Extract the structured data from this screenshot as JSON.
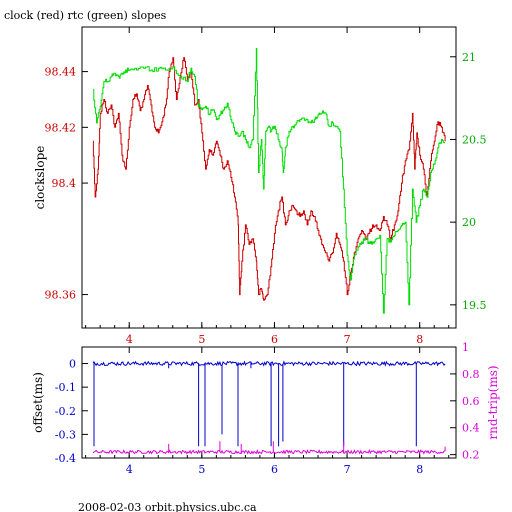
{
  "title": "clock (red) rtc (green) slopes",
  "footer": "2008-02-03 orbit.physics.ubc.ca",
  "colors": {
    "clock": "#cc0000",
    "rtc": "#00dd00",
    "offset": "#0000cc",
    "rndtrip": "#dd00dd",
    "frame": "#000000"
  },
  "chart_data": [
    {
      "type": "line",
      "title": "clock (red) rtc (green) slopes",
      "ylabel": "clockslope",
      "xlabel": "",
      "xlim": [
        3.35,
        8.5
      ],
      "ylim": [
        98.348,
        98.456
      ],
      "y2lim": [
        19.36,
        21.18
      ],
      "x_ticks": [
        4,
        5,
        6,
        7,
        8
      ],
      "y_ticks": [
        98.36,
        98.4,
        98.42,
        98.44
      ],
      "y_tick_labels": [
        "98.36",
        "98.4",
        "98.42",
        "98.44"
      ],
      "y2_ticks": [
        19.5,
        20,
        20.5,
        21
      ],
      "y2_tick_labels": [
        "19.5",
        "20",
        "20.5",
        "21"
      ],
      "grid": false,
      "series": [
        {
          "name": "clock",
          "axis": "left",
          "points": [
            [
              3.5,
              98.415
            ],
            [
              3.53,
              98.395
            ],
            [
              3.57,
              98.405
            ],
            [
              3.6,
              98.425
            ],
            [
              3.65,
              98.43
            ],
            [
              3.7,
              98.425
            ],
            [
              3.75,
              98.428
            ],
            [
              3.8,
              98.42
            ],
            [
              3.85,
              98.425
            ],
            [
              3.9,
              98.41
            ],
            [
              3.95,
              98.405
            ],
            [
              4.0,
              98.42
            ],
            [
              4.05,
              98.43
            ],
            [
              4.1,
              98.432
            ],
            [
              4.15,
              98.426
            ],
            [
              4.2,
              98.43
            ],
            [
              4.25,
              98.435
            ],
            [
              4.3,
              98.428
            ],
            [
              4.35,
              98.42
            ],
            [
              4.4,
              98.418
            ],
            [
              4.45,
              98.422
            ],
            [
              4.5,
              98.428
            ],
            [
              4.55,
              98.44
            ],
            [
              4.6,
              98.445
            ],
            [
              4.65,
              98.43
            ],
            [
              4.7,
              98.438
            ],
            [
              4.75,
              98.445
            ],
            [
              4.8,
              98.437
            ],
            [
              4.85,
              98.44
            ],
            [
              4.9,
              98.428
            ],
            [
              4.95,
              98.43
            ],
            [
              5.0,
              98.418
            ],
            [
              5.05,
              98.405
            ],
            [
              5.1,
              98.412
            ],
            [
              5.15,
              98.41
            ],
            [
              5.2,
              98.415
            ],
            [
              5.25,
              98.41
            ],
            [
              5.3,
              98.405
            ],
            [
              5.35,
              98.408
            ],
            [
              5.4,
              98.402
            ],
            [
              5.45,
              98.395
            ],
            [
              5.5,
              98.385
            ],
            [
              5.52,
              98.36
            ],
            [
              5.55,
              98.372
            ],
            [
              5.6,
              98.385
            ],
            [
              5.65,
              98.378
            ],
            [
              5.7,
              98.38
            ],
            [
              5.75,
              98.372
            ],
            [
              5.78,
              98.36
            ],
            [
              5.82,
              98.362
            ],
            [
              5.85,
              98.358
            ],
            [
              5.9,
              98.36
            ],
            [
              5.95,
              98.37
            ],
            [
              6.0,
              98.382
            ],
            [
              6.05,
              98.39
            ],
            [
              6.1,
              98.395
            ],
            [
              6.15,
              98.385
            ],
            [
              6.2,
              98.39
            ],
            [
              6.25,
              98.392
            ],
            [
              6.3,
              98.39
            ],
            [
              6.35,
              98.388
            ],
            [
              6.4,
              98.39
            ],
            [
              6.45,
              98.385
            ],
            [
              6.5,
              98.39
            ],
            [
              6.55,
              98.388
            ],
            [
              6.6,
              98.383
            ],
            [
              6.65,
              98.378
            ],
            [
              6.7,
              98.375
            ],
            [
              6.75,
              98.372
            ],
            [
              6.8,
              98.375
            ],
            [
              6.85,
              98.382
            ],
            [
              6.9,
              98.378
            ],
            [
              6.95,
              98.372
            ],
            [
              7.0,
              98.36
            ],
            [
              7.05,
              98.368
            ],
            [
              7.1,
              98.375
            ],
            [
              7.15,
              98.38
            ],
            [
              7.2,
              98.383
            ],
            [
              7.25,
              98.38
            ],
            [
              7.3,
              98.382
            ],
            [
              7.35,
              98.385
            ],
            [
              7.4,
              98.385
            ],
            [
              7.45,
              98.383
            ],
            [
              7.5,
              98.388
            ],
            [
              7.55,
              98.385
            ],
            [
              7.6,
              98.38
            ],
            [
              7.65,
              98.385
            ],
            [
              7.7,
              98.39
            ],
            [
              7.75,
              98.4
            ],
            [
              7.8,
              98.408
            ],
            [
              7.85,
              98.412
            ],
            [
              7.9,
              98.425
            ],
            [
              7.93,
              98.405
            ],
            [
              7.96,
              98.418
            ],
            [
              8.0,
              98.41
            ],
            [
              8.05,
              98.405
            ],
            [
              8.1,
              98.395
            ],
            [
              8.15,
              98.408
            ],
            [
              8.2,
              98.415
            ],
            [
              8.25,
              98.422
            ],
            [
              8.3,
              98.42
            ],
            [
              8.35,
              98.415
            ]
          ]
        },
        {
          "name": "rtc",
          "axis": "right",
          "points": [
            [
              3.5,
              20.8
            ],
            [
              3.55,
              20.6
            ],
            [
              3.6,
              20.7
            ],
            [
              3.65,
              20.85
            ],
            [
              3.7,
              20.85
            ],
            [
              3.75,
              20.88
            ],
            [
              3.8,
              20.9
            ],
            [
              3.85,
              20.88
            ],
            [
              3.9,
              20.9
            ],
            [
              3.95,
              20.92
            ],
            [
              4.0,
              20.92
            ],
            [
              4.1,
              20.92
            ],
            [
              4.2,
              20.93
            ],
            [
              4.3,
              20.92
            ],
            [
              4.4,
              20.93
            ],
            [
              4.5,
              20.92
            ],
            [
              4.6,
              20.94
            ],
            [
              4.7,
              20.88
            ],
            [
              4.8,
              20.85
            ],
            [
              4.85,
              20.93
            ],
            [
              4.9,
              20.88
            ],
            [
              4.95,
              20.7
            ],
            [
              5.0,
              20.68
            ],
            [
              5.05,
              20.7
            ],
            [
              5.1,
              20.65
            ],
            [
              5.15,
              20.68
            ],
            [
              5.2,
              20.62
            ],
            [
              5.25,
              20.65
            ],
            [
              5.3,
              20.68
            ],
            [
              5.35,
              20.72
            ],
            [
              5.4,
              20.62
            ],
            [
              5.45,
              20.55
            ],
            [
              5.5,
              20.52
            ],
            [
              5.55,
              20.55
            ],
            [
              5.6,
              20.5
            ],
            [
              5.65,
              20.45
            ],
            [
              5.7,
              20.5
            ],
            [
              5.75,
              21.05
            ],
            [
              5.78,
              20.3
            ],
            [
              5.82,
              20.5
            ],
            [
              5.85,
              20.2
            ],
            [
              5.88,
              20.55
            ],
            [
              5.92,
              20.58
            ],
            [
              5.95,
              20.55
            ],
            [
              6.0,
              20.58
            ],
            [
              6.05,
              20.5
            ],
            [
              6.1,
              20.45
            ],
            [
              6.12,
              20.3
            ],
            [
              6.15,
              20.45
            ],
            [
              6.2,
              20.55
            ],
            [
              6.25,
              20.58
            ],
            [
              6.3,
              20.6
            ],
            [
              6.35,
              20.62
            ],
            [
              6.4,
              20.63
            ],
            [
              6.45,
              20.62
            ],
            [
              6.5,
              20.6
            ],
            [
              6.55,
              20.62
            ],
            [
              6.6,
              20.65
            ],
            [
              6.65,
              20.66
            ],
            [
              6.7,
              20.66
            ],
            [
              6.75,
              20.58
            ],
            [
              6.8,
              20.6
            ],
            [
              6.85,
              20.58
            ],
            [
              6.9,
              20.55
            ],
            [
              6.95,
              20.2
            ],
            [
              7.0,
              19.8
            ],
            [
              7.05,
              19.65
            ],
            [
              7.1,
              19.8
            ],
            [
              7.15,
              19.85
            ],
            [
              7.2,
              19.88
            ],
            [
              7.25,
              19.9
            ],
            [
              7.3,
              19.88
            ],
            [
              7.35,
              19.88
            ],
            [
              7.4,
              19.9
            ],
            [
              7.45,
              19.92
            ],
            [
              7.5,
              19.45
            ],
            [
              7.55,
              19.9
            ],
            [
              7.6,
              19.88
            ],
            [
              7.65,
              19.92
            ],
            [
              7.7,
              19.95
            ],
            [
              7.75,
              19.98
            ],
            [
              7.8,
              20.0
            ],
            [
              7.85,
              19.5
            ],
            [
              7.9,
              20.2
            ],
            [
              7.95,
              20.0
            ],
            [
              8.0,
              20.1
            ],
            [
              8.05,
              20.2
            ],
            [
              8.1,
              20.15
            ],
            [
              8.15,
              20.3
            ],
            [
              8.2,
              20.35
            ],
            [
              8.25,
              20.45
            ],
            [
              8.3,
              20.5
            ],
            [
              8.35,
              20.48
            ]
          ]
        }
      ]
    },
    {
      "type": "line",
      "ylabel": "offset(ms)",
      "y2label": "rnd-trip(ms)",
      "xlim": [
        3.35,
        8.5
      ],
      "ylim": [
        -0.4,
        0.07
      ],
      "y2lim": [
        0.175,
        1.0
      ],
      "x_ticks": [
        4,
        5,
        6,
        7,
        8
      ],
      "y_ticks": [
        -0.4,
        -0.3,
        -0.2,
        -0.1,
        0
      ],
      "y_tick_labels": [
        "-0.4",
        "-0.3",
        "-0.2",
        "-0.1",
        "0"
      ],
      "y2_ticks": [
        0.2,
        0.4,
        0.6,
        0.8,
        1
      ],
      "y2_tick_labels": [
        "0.2",
        "0.4",
        "0.6",
        "0.8",
        "1"
      ],
      "grid": false,
      "series": [
        {
          "name": "offset",
          "axis": "left",
          "baseline": 0.0,
          "noise": 0.008,
          "spikes": [
            [
              3.52,
              -0.35
            ],
            [
              4.55,
              -0.02
            ],
            [
              4.95,
              -0.35
            ],
            [
              5.05,
              -0.35
            ],
            [
              5.28,
              -0.3
            ],
            [
              5.5,
              -0.35
            ],
            [
              5.68,
              -0.02
            ],
            [
              5.95,
              -0.35
            ],
            [
              6.05,
              -0.35
            ],
            [
              6.12,
              -0.33
            ],
            [
              6.95,
              -0.35
            ],
            [
              7.95,
              -0.35
            ]
          ]
        },
        {
          "name": "rnd-trip",
          "axis": "right",
          "baseline": 0.22,
          "noise": 0.012,
          "spikes": [
            [
              4.55,
              0.28
            ],
            [
              5.25,
              0.3
            ],
            [
              5.55,
              0.28
            ],
            [
              5.98,
              0.3
            ],
            [
              6.95,
              0.3
            ],
            [
              8.35,
              0.26
            ]
          ]
        }
      ]
    }
  ]
}
